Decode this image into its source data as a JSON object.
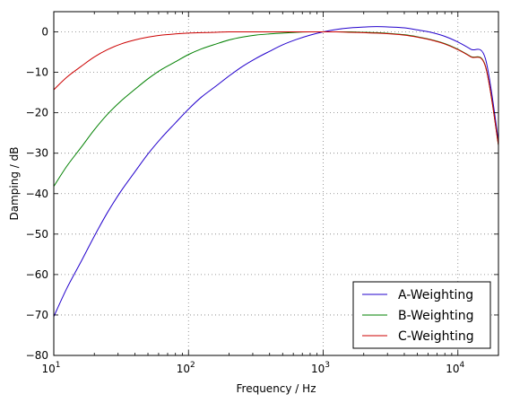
{
  "chart_data": {
    "type": "line",
    "title": "",
    "xlabel": "Frequency / Hz",
    "ylabel": "Damping / dB",
    "xscale": "log",
    "xlim": [
      10,
      20000
    ],
    "ylim": [
      -80,
      5
    ],
    "grid": true,
    "legend_position": "bottom-right",
    "x_ticks": [
      {
        "value": 10,
        "base": "10",
        "exp": "1"
      },
      {
        "value": 100,
        "base": "10",
        "exp": "2"
      },
      {
        "value": 1000,
        "base": "10",
        "exp": "3"
      },
      {
        "value": 10000,
        "base": "10",
        "exp": "4"
      }
    ],
    "y_ticks": [
      {
        "value": 0,
        "label": "0"
      },
      {
        "value": -10,
        "label": "−10"
      },
      {
        "value": -20,
        "label": "−20"
      },
      {
        "value": -30,
        "label": "−30"
      },
      {
        "value": -40,
        "label": "−40"
      },
      {
        "value": -50,
        "label": "−50"
      },
      {
        "value": -60,
        "label": "−60"
      },
      {
        "value": -70,
        "label": "−70"
      },
      {
        "value": -80,
        "label": "−80"
      }
    ],
    "x": [
      10,
      12.5,
      16,
      20,
      25,
      31.5,
      40,
      50,
      63,
      80,
      100,
      125,
      160,
      200,
      250,
      315,
      400,
      500,
      630,
      800,
      1000,
      1250,
      1600,
      2000,
      2500,
      3150,
      4000,
      5000,
      6300,
      8000,
      10000,
      12500,
      16000,
      20000
    ],
    "series": [
      {
        "name": "A-Weighting",
        "color": "#2200cc",
        "values": [
          -70.4,
          -63.4,
          -56.7,
          -50.5,
          -44.7,
          -39.4,
          -34.6,
          -30.2,
          -26.2,
          -22.5,
          -19.1,
          -16.1,
          -13.4,
          -10.9,
          -8.6,
          -6.6,
          -4.8,
          -3.2,
          -1.9,
          -0.8,
          0.0,
          0.6,
          1.0,
          1.2,
          1.3,
          1.2,
          1.0,
          0.5,
          -0.1,
          -1.1,
          -2.5,
          -4.3,
          -6.6,
          -27.0
        ]
      },
      {
        "name": "B-Weighting",
        "color": "#008000",
        "values": [
          -38.2,
          -33.2,
          -28.5,
          -24.2,
          -20.4,
          -17.1,
          -14.2,
          -11.6,
          -9.3,
          -7.4,
          -5.6,
          -4.2,
          -3.0,
          -2.0,
          -1.3,
          -0.8,
          -0.5,
          -0.3,
          -0.1,
          0.0,
          0.0,
          0.0,
          0.0,
          -0.1,
          -0.2,
          -0.4,
          -0.7,
          -1.2,
          -1.9,
          -2.9,
          -4.3,
          -6.1,
          -8.4,
          -28.0
        ]
      },
      {
        "name": "C-Weighting",
        "color": "#cc0000",
        "values": [
          -14.3,
          -11.2,
          -8.5,
          -6.2,
          -4.4,
          -3.0,
          -2.0,
          -1.3,
          -0.8,
          -0.5,
          -0.3,
          -0.2,
          -0.1,
          0.0,
          0.0,
          0.0,
          0.0,
          0.0,
          0.0,
          0.0,
          0.0,
          0.0,
          -0.1,
          -0.2,
          -0.3,
          -0.5,
          -0.8,
          -1.3,
          -2.0,
          -3.0,
          -4.4,
          -6.2,
          -8.5,
          -28.0
        ]
      }
    ]
  }
}
